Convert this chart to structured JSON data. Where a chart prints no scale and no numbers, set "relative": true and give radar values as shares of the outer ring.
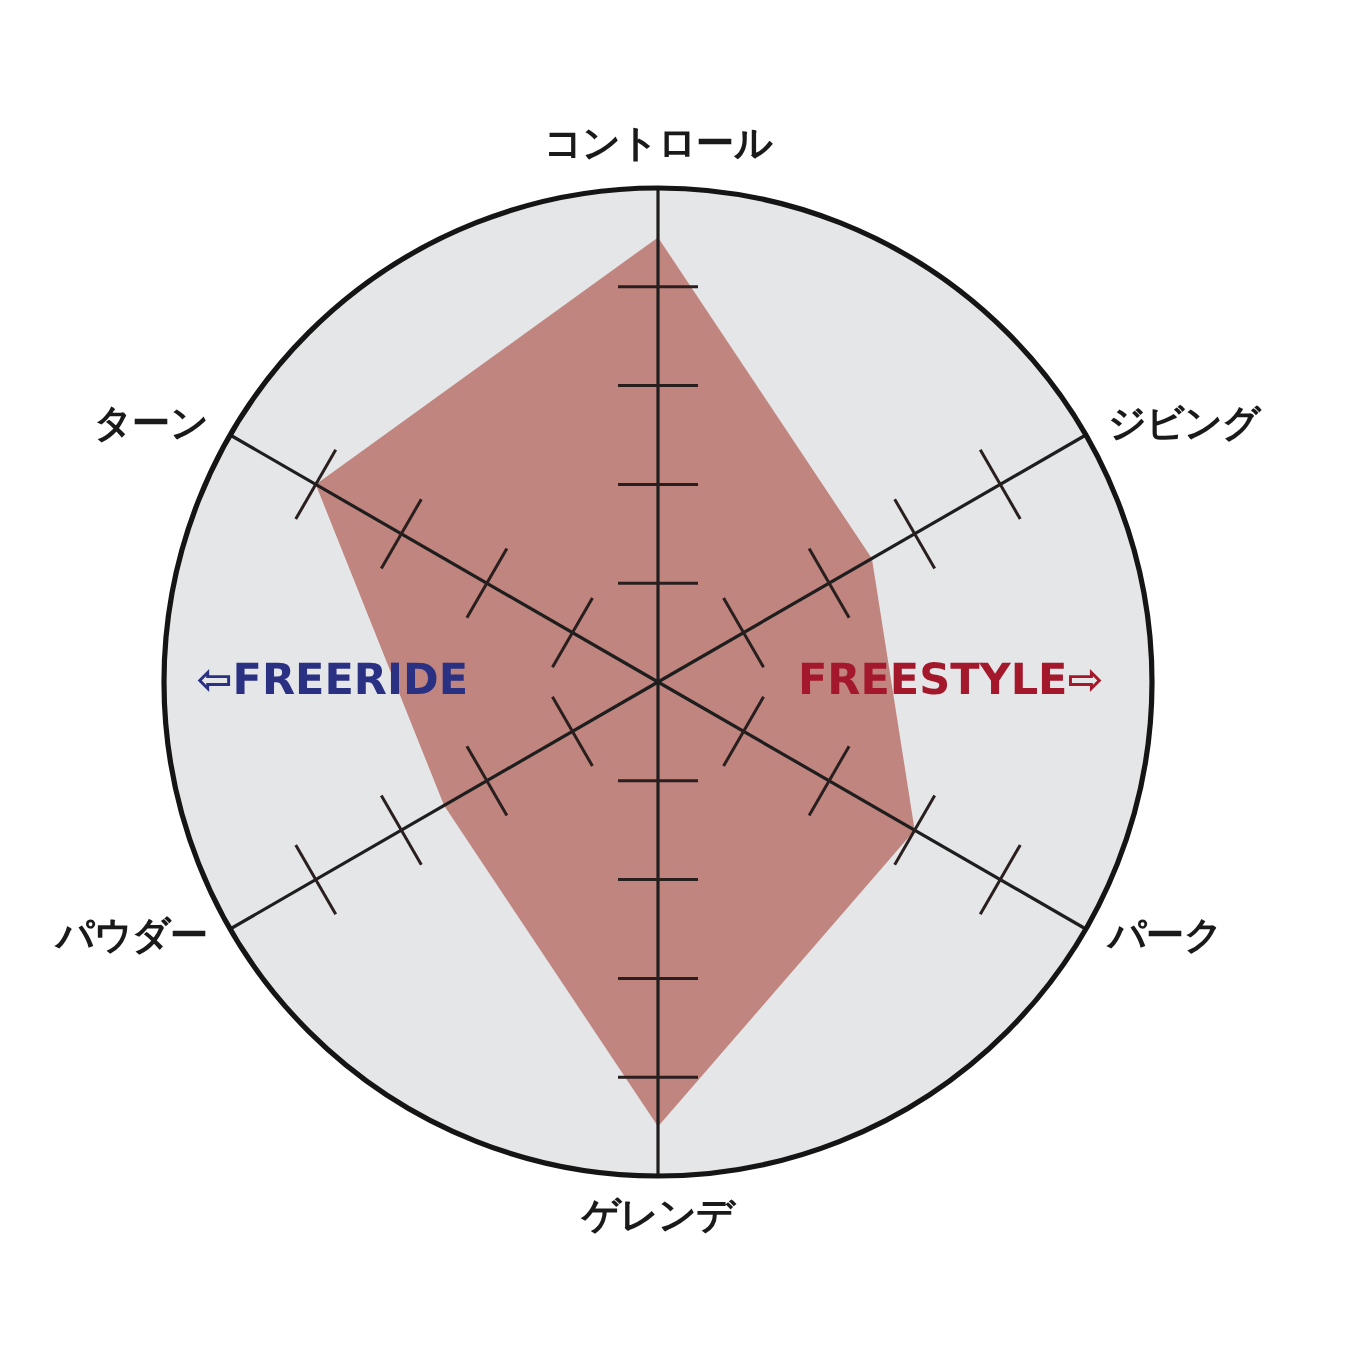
{
  "chart_data": {
    "type": "radar",
    "categories": [
      "コントロール",
      "ジビング",
      "パーク",
      "ゲレンデ",
      "パウダー",
      "ターン"
    ],
    "relative": true,
    "series": [
      {
        "color": "#c0857f",
        "values": [
          0.9,
          0.5,
          0.6,
          0.9,
          0.5,
          0.8
        ]
      }
    ],
    "annotations": [
      "⇦FREERIDE",
      "FREESTYLE⇨"
    ]
  }
}
